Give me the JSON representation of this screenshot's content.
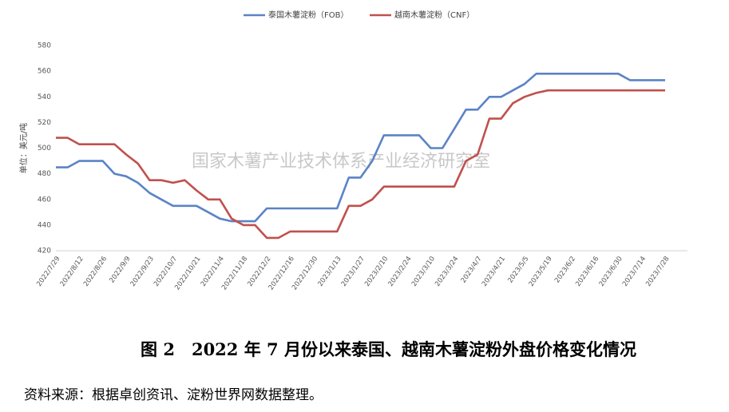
{
  "chart_data": {
    "type": "line",
    "y_label": "单位：美元/吨",
    "watermark": "国家木薯产业技术体系产业经济研究室",
    "categories": [
      "2022/7/29",
      null,
      "2022/8/12",
      null,
      "2022/8/26",
      null,
      "2022/9/9",
      null,
      "2022/9/23",
      null,
      "2022/10/7",
      null,
      "2022/10/21",
      null,
      "2022/11/4",
      null,
      "2022/11/18",
      null,
      "2022/12/2",
      null,
      "2022/12/16",
      null,
      "2022/12/30",
      null,
      "2023/1/13",
      null,
      "2023/1/27",
      null,
      "2023/2/10",
      null,
      "2023/2/24",
      null,
      "2023/3/10",
      null,
      "2023/3/24",
      null,
      "2023/4/7",
      null,
      "2023/4/21",
      null,
      "2023/5/5",
      null,
      "2023/5/19",
      null,
      "2023/6/2",
      null,
      "2023/6/16",
      null,
      "2023/6/30",
      null,
      "2023/7/14",
      null,
      "2023/7/28"
    ],
    "series": [
      {
        "name": "泰国木薯淀粉（FOB）",
        "color": "#5b83c6",
        "values": [
          485,
          485,
          490,
          490,
          490,
          480,
          478,
          473,
          465,
          460,
          455,
          455,
          455,
          450,
          445,
          443,
          443,
          443,
          453,
          453,
          453,
          453,
          453,
          453,
          453,
          477,
          477,
          490,
          510,
          510,
          510,
          510,
          500,
          500,
          515,
          530,
          530,
          540,
          540,
          545,
          550,
          558,
          558,
          558,
          558,
          558,
          558,
          558,
          558,
          553,
          553,
          553,
          553
        ]
      },
      {
        "name": "越南木薯淀粉（CNF）",
        "color": "#c0504d",
        "values": [
          508,
          508,
          503,
          503,
          503,
          503,
          495,
          488,
          475,
          475,
          473,
          475,
          467,
          460,
          460,
          445,
          440,
          440,
          430,
          430,
          435,
          435,
          435,
          435,
          435,
          455,
          455,
          460,
          470,
          470,
          470,
          470,
          470,
          470,
          470,
          490,
          495,
          523,
          523,
          535,
          540,
          543,
          545,
          545,
          545,
          545,
          545,
          545,
          545,
          545,
          545,
          545,
          545
        ]
      }
    ],
    "ylim": [
      420,
      580
    ],
    "yticks": [
      420,
      440,
      460,
      480,
      500,
      520,
      540,
      560,
      580
    ],
    "grid": false
  },
  "caption": "图 2　2022 年 7 月份以来泰国、越南木薯淀粉外盘价格变化情况",
  "source": "资料来源：根据卓创资讯、淀粉世界网数据整理。"
}
